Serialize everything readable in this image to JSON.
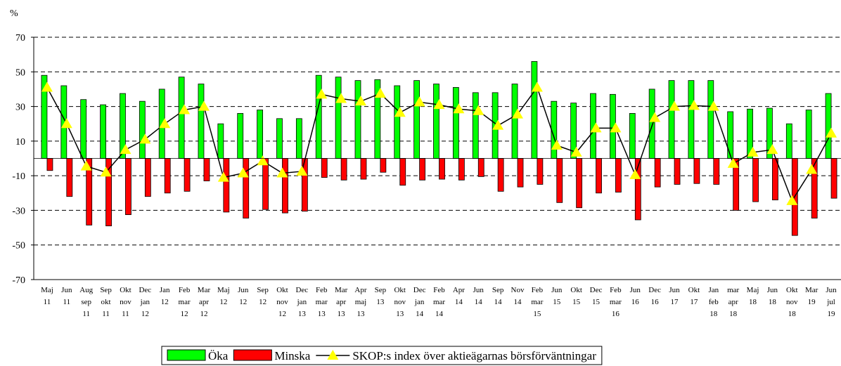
{
  "chart_data": {
    "type": "bar",
    "y_label": "%",
    "categories": [
      [
        "Maj",
        "11"
      ],
      [
        "Jun",
        "11"
      ],
      [
        "Aug",
        "sep",
        "11"
      ],
      [
        "Sep",
        "okt",
        "11"
      ],
      [
        "Okt",
        "nov",
        "11"
      ],
      [
        "Dec",
        "jan",
        "12"
      ],
      [
        "Jan",
        "12"
      ],
      [
        "Feb",
        "mar",
        "12"
      ],
      [
        "Mar",
        "apr",
        "12"
      ],
      [
        "Maj",
        "12"
      ],
      [
        "Jun",
        "12"
      ],
      [
        "Sep",
        "12"
      ],
      [
        "Okt",
        "nov",
        "12"
      ],
      [
        "Dec",
        "jan",
        "13"
      ],
      [
        "Feb",
        "mar",
        "13"
      ],
      [
        "Mar",
        "apr",
        "13"
      ],
      [
        "Apr",
        "maj",
        "13"
      ],
      [
        "Sep",
        "13"
      ],
      [
        "Okt",
        "nov",
        "13"
      ],
      [
        "Dec",
        "jan",
        "14"
      ],
      [
        "Feb",
        "mar",
        "14"
      ],
      [
        "Apr",
        "14"
      ],
      [
        "Jun",
        "14"
      ],
      [
        "Sep",
        "14"
      ],
      [
        "Nov",
        "14"
      ],
      [
        "Feb",
        "mar",
        "15"
      ],
      [
        "Jun",
        "15"
      ],
      [
        "Okt",
        "15"
      ],
      [
        "Dec",
        "15"
      ],
      [
        "Feb",
        "mar",
        "16"
      ],
      [
        "Jun",
        "16"
      ],
      [
        "Dec",
        "16"
      ],
      [
        "Jun",
        "17"
      ],
      [
        "Okt",
        "17"
      ],
      [
        "Jan",
        "feb",
        "18"
      ],
      [
        "mar",
        "apr",
        "18"
      ],
      [
        "Maj",
        "18"
      ],
      [
        "Jun",
        "18"
      ],
      [
        "Okt",
        "nov",
        "18"
      ],
      [
        "Mar",
        "19"
      ],
      [
        "Jun",
        "jul",
        "19"
      ]
    ],
    "series": [
      {
        "name": "Öka",
        "type": "bar",
        "color": "#00ff00",
        "values": [
          48,
          42,
          34,
          31,
          37.5,
          33,
          40,
          47,
          43,
          20,
          26,
          28,
          23,
          23,
          48,
          47,
          45,
          45.5,
          42,
          45,
          43,
          41,
          38,
          38,
          43,
          56,
          33,
          32,
          37.5,
          37,
          26,
          40,
          45,
          45,
          45,
          27,
          28.5,
          29,
          20,
          28,
          37.5
        ]
      },
      {
        "name": "Minska",
        "type": "bar",
        "color": "#ff0000",
        "values": [
          -7,
          -22,
          -38.5,
          -39,
          -32.5,
          -22,
          -20,
          -19,
          -13,
          -31,
          -34.5,
          -29.5,
          -31.5,
          -30.5,
          -11,
          -12.5,
          -12,
          -8,
          -15.5,
          -12.5,
          -12,
          -12.5,
          -10.5,
          -19,
          -16.5,
          -15,
          -25.5,
          -28.5,
          -20,
          -19.5,
          -35.5,
          -16.5,
          -15,
          -14.5,
          -15,
          -30,
          -25,
          -24,
          -44.5,
          -34.5,
          -23
        ]
      },
      {
        "name": "SKOP:s index över aktieägarnas börsförväntningar",
        "type": "line",
        "color": "#000000",
        "marker_color": "#ffff00",
        "values": [
          41,
          20,
          -4.5,
          -8,
          5,
          11,
          20,
          28,
          30,
          -11,
          -8.5,
          -1.5,
          -8.5,
          -7.5,
          37,
          34.5,
          33,
          37.5,
          26.5,
          32.5,
          31,
          28.5,
          27.5,
          19,
          25.5,
          41,
          7.5,
          3.5,
          17.5,
          17.5,
          -9.5,
          23.5,
          30,
          30.5,
          30,
          -3,
          3.5,
          5,
          -24.5,
          -6.5,
          14.5
        ]
      }
    ],
    "ylim": [
      -70,
      70
    ],
    "yticks": [
      -70,
      -50,
      -30,
      -10,
      10,
      30,
      50,
      70
    ],
    "grid": true,
    "legend": "bottom"
  }
}
